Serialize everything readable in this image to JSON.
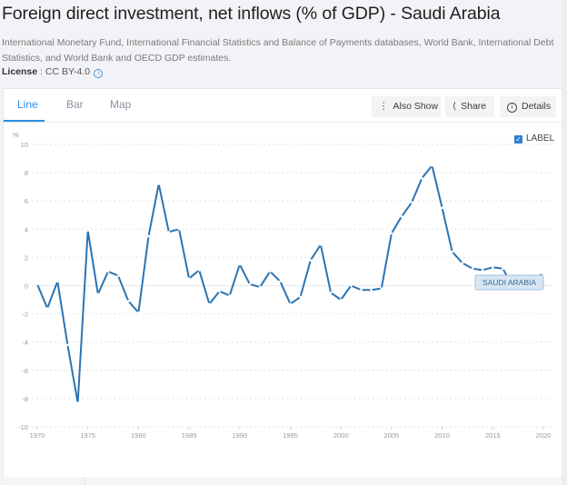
{
  "header": {
    "title": "Foreign direct investment, net inflows (% of GDP) - Saudi Arabia",
    "source": "International Monetary Fund, International Financial Statistics and Balance of Payments databases, World Bank, International Debt Statistics, and World Bank and OECD GDP estimates.",
    "license_label": "License",
    "license_value": " : CC BY-4.0",
    "license_info_icon": "info-circle-icon"
  },
  "tabs": [
    {
      "label": "Line",
      "active": true
    },
    {
      "label": "Bar",
      "active": false
    },
    {
      "label": "Map",
      "active": false
    }
  ],
  "toolbar": {
    "also_show": {
      "label": "Also Show",
      "icon": "vertical-dots-icon"
    },
    "share": {
      "label": "Share",
      "icon": "share-icon"
    },
    "details": {
      "label": "Details",
      "icon": "info-circle-icon"
    }
  },
  "legend": {
    "checkbox_checked": true,
    "label": "LABEL"
  },
  "colors": {
    "line": "#2b74b3",
    "accent": "#2d8ee0"
  },
  "chart_data": {
    "type": "line",
    "title": "Foreign direct investment, net inflows (% of GDP) - Saudi Arabia",
    "xlabel": "",
    "ylabel": "%",
    "ylim": [
      -10,
      10
    ],
    "xlim": [
      1970,
      2020
    ],
    "yticks": [
      10,
      8,
      6,
      4,
      2,
      0,
      -2,
      -4,
      -6,
      -8,
      -10
    ],
    "xticks": [
      1970,
      1975,
      1980,
      1985,
      1990,
      1995,
      2000,
      2005,
      2010,
      2015,
      2020
    ],
    "grid": true,
    "series": [
      {
        "name": "SAUDI ARABIA",
        "x": [
          1970,
          1971,
          1972,
          1973,
          1974,
          1975,
          1976,
          1977,
          1978,
          1979,
          1980,
          1981,
          1982,
          1983,
          1984,
          1985,
          1986,
          1987,
          1988,
          1989,
          1990,
          1991,
          1992,
          1993,
          1994,
          1995,
          1996,
          1997,
          1998,
          1999,
          2000,
          2001,
          2002,
          2003,
          2004,
          2005,
          2006,
          2007,
          2008,
          2009,
          2010,
          2011,
          2012,
          2013,
          2014,
          2015,
          2016,
          2017,
          2018,
          2019,
          2020
        ],
        "values": [
          0.1,
          -1.6,
          0.3,
          -4.2,
          -8.3,
          3.9,
          -0.6,
          1.0,
          0.7,
          -1.1,
          -1.9,
          3.5,
          7.2,
          3.8,
          4.0,
          0.5,
          1.1,
          -1.3,
          -0.4,
          -0.7,
          1.5,
          0.1,
          -0.1,
          1.0,
          0.3,
          -1.3,
          -0.8,
          1.8,
          2.9,
          -0.5,
          -1.0,
          0.0,
          -0.3,
          -0.3,
          -0.2,
          3.7,
          4.9,
          5.9,
          7.6,
          8.5,
          5.5,
          2.4,
          1.6,
          1.2,
          1.1,
          1.3,
          1.2,
          -0.1,
          0.5,
          0.6,
          0.8
        ]
      }
    ],
    "series_label": "SAUDI ARABIA"
  }
}
